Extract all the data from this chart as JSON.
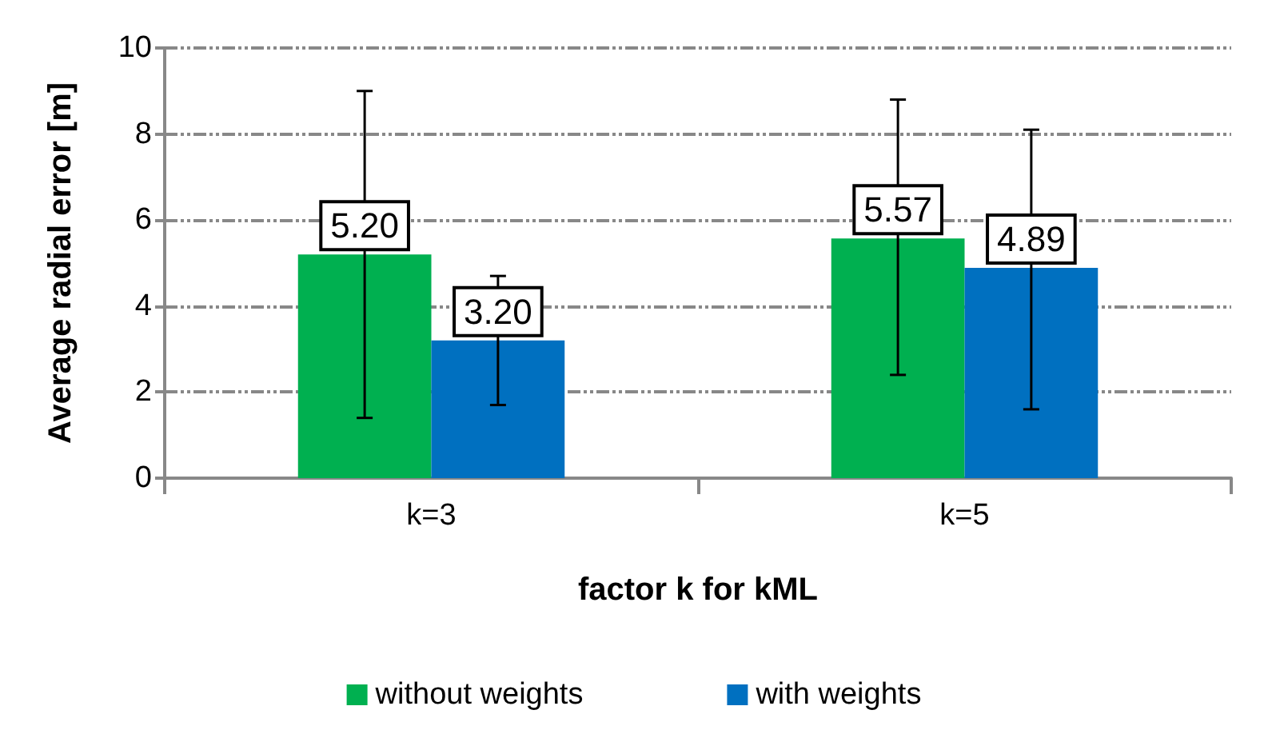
{
  "chart_data": {
    "type": "bar",
    "xlabel": "factor k for kML",
    "ylabel": "Average radial error [m]",
    "categories": [
      "k=3",
      "k=5"
    ],
    "series": [
      {
        "name": "without weights",
        "color": "#00b050",
        "values": [
          5.2,
          5.57
        ],
        "value_labels": [
          "5.20",
          "5.57"
        ],
        "errors": [
          [
            1.4,
            9.0
          ],
          [
            2.4,
            8.8
          ]
        ]
      },
      {
        "name": "with weights",
        "color": "#0070c0",
        "values": [
          3.2,
          4.89
        ],
        "value_labels": [
          "3.20",
          "4.89"
        ],
        "errors": [
          [
            1.7,
            4.7
          ],
          [
            1.6,
            8.1
          ]
        ]
      }
    ],
    "ylim": [
      0,
      10
    ],
    "yticks": [
      0,
      2,
      4,
      6,
      8,
      10
    ],
    "grid": "y",
    "legend": "bottom"
  }
}
